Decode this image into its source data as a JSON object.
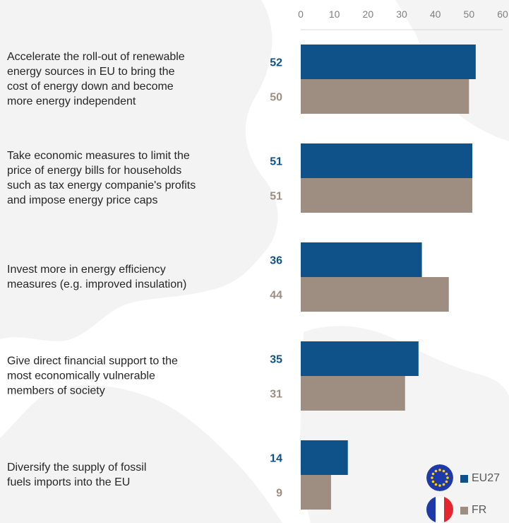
{
  "chart_data": {
    "type": "bar",
    "orientation": "horizontal",
    "categories": [
      "Accelerate the roll-out of renewable energy sources in EU to bring the cost of energy down and become more energy independent",
      "Take economic measures to limit the price of energy bills for households such as tax energy companie's profits and impose energy price caps",
      "Invest more in energy efficiency measures (e.g. improved insulation)",
      "Give direct financial support to the most economically vulnerable members of society",
      "Diversify the supply of fossil fuels imports into the EU"
    ],
    "category_lines": [
      [
        "Accelerate the roll-out of renewable",
        "energy sources in EU to bring the",
        "cost of energy down and become",
        "more energy independent"
      ],
      [
        "Take economic measures to limit the",
        "price of energy bills for households",
        "such as tax energy companie's profits",
        "and impose energy price caps"
      ],
      [
        "Invest more in energy efficiency",
        "measures (e.g. improved insulation)"
      ],
      [
        "Give direct financial support to the",
        "most economically vulnerable",
        "members of society"
      ],
      [
        "Diversify the supply of fossil",
        "fuels imports into the EU"
      ]
    ],
    "series": [
      {
        "name": "EU27",
        "values": [
          52,
          51,
          36,
          35,
          14
        ],
        "color": "#0e5289"
      },
      {
        "name": "FR",
        "values": [
          50,
          51,
          44,
          31,
          9
        ],
        "color": "#9e8d81"
      }
    ],
    "xlim": [
      0,
      60
    ],
    "xticks": [
      0,
      10,
      20,
      30,
      40,
      50,
      60
    ],
    "axis_position": "top",
    "grid": false,
    "legend_position": "bottom-right",
    "legend_icons": [
      "eu-flag-icon",
      "france-flag-icon"
    ]
  }
}
